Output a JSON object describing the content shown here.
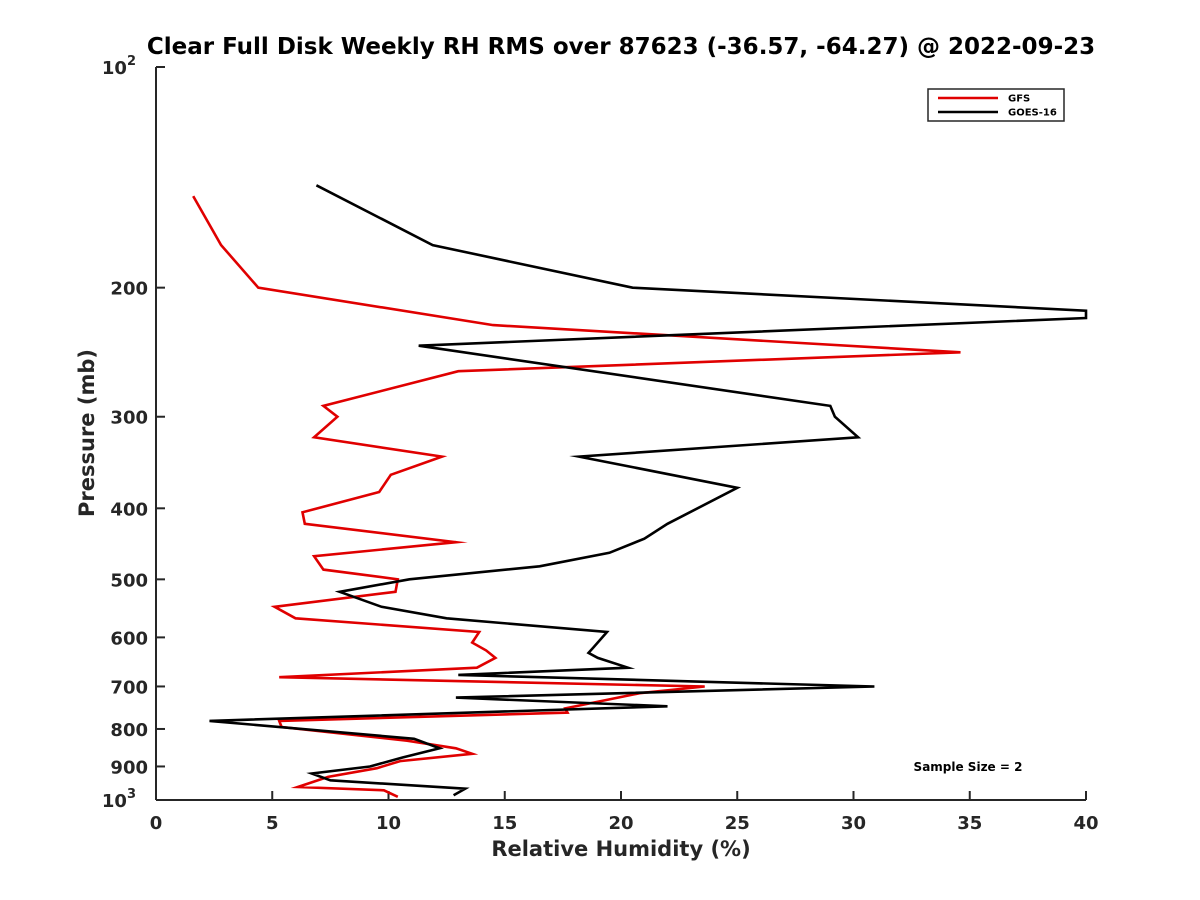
{
  "chart_data": {
    "type": "line",
    "title": "Clear Full Disk Weekly RH RMS over 87623 (-36.57, -64.27) @ 2022-09-23",
    "xlabel": "Relative Humidity (%)",
    "ylabel": "Pressure (mb)",
    "xlim": [
      0,
      40
    ],
    "ylim": [
      100,
      1000
    ],
    "y_scale": "log",
    "y_reversed": true,
    "x_ticks": [
      "0",
      "5",
      "10",
      "15",
      "20",
      "25",
      "30",
      "35",
      "40"
    ],
    "y_ticks": [
      {
        "value": 100,
        "label": "10",
        "exp": "2"
      },
      {
        "value": 200,
        "label": "200"
      },
      {
        "value": 300,
        "label": "300"
      },
      {
        "value": 400,
        "label": "400"
      },
      {
        "value": 500,
        "label": "500"
      },
      {
        "value": 600,
        "label": "600"
      },
      {
        "value": 700,
        "label": "700"
      },
      {
        "value": 800,
        "label": "800"
      },
      {
        "value": 900,
        "label": "900"
      },
      {
        "value": 1000,
        "label": "10",
        "exp": "3"
      }
    ],
    "grid": false,
    "legend_position": "top-right",
    "annotation": "Sample Size = 2",
    "series": [
      {
        "name": "GFS",
        "color": "#e00000",
        "points": [
          [
            1.6,
            150
          ],
          [
            2.8,
            175
          ],
          [
            4.4,
            200
          ],
          [
            14.5,
            225
          ],
          [
            34.6,
            245
          ],
          [
            13.0,
            260
          ],
          [
            7.2,
            290
          ],
          [
            7.8,
            300
          ],
          [
            6.8,
            320
          ],
          [
            12.3,
            340
          ],
          [
            10.1,
            360
          ],
          [
            9.6,
            380
          ],
          [
            6.3,
            405
          ],
          [
            6.4,
            420
          ],
          [
            12.9,
            445
          ],
          [
            6.8,
            465
          ],
          [
            7.2,
            485
          ],
          [
            10.4,
            500
          ],
          [
            10.3,
            520
          ],
          [
            5.1,
            545
          ],
          [
            6.0,
            565
          ],
          [
            13.9,
            590
          ],
          [
            13.6,
            610
          ],
          [
            14.2,
            625
          ],
          [
            14.6,
            640
          ],
          [
            13.8,
            660
          ],
          [
            5.3,
            680
          ],
          [
            23.6,
            700
          ],
          [
            20.8,
            715
          ],
          [
            17.6,
            750
          ],
          [
            17.7,
            760
          ],
          [
            5.3,
            780
          ],
          [
            5.4,
            795
          ],
          [
            10.8,
            830
          ],
          [
            12.9,
            850
          ],
          [
            13.6,
            865
          ],
          [
            10.5,
            885
          ],
          [
            9.5,
            905
          ],
          [
            7.4,
            930
          ],
          [
            6.1,
            960
          ],
          [
            9.8,
            970
          ],
          [
            10.4,
            990
          ]
        ]
      },
      {
        "name": "GOES-16",
        "color": "#000000",
        "points": [
          [
            6.9,
            145
          ],
          [
            11.9,
            175
          ],
          [
            20.5,
            200
          ],
          [
            40.0,
            215
          ],
          [
            40.0,
            220
          ],
          [
            11.3,
            240
          ],
          [
            29.0,
            290
          ],
          [
            29.2,
            300
          ],
          [
            30.2,
            320
          ],
          [
            18.2,
            340
          ],
          [
            25.0,
            375
          ],
          [
            22.0,
            420
          ],
          [
            21.0,
            440
          ],
          [
            19.5,
            460
          ],
          [
            16.5,
            480
          ],
          [
            10.9,
            500
          ],
          [
            7.9,
            520
          ],
          [
            9.7,
            545
          ],
          [
            12.5,
            565
          ],
          [
            19.4,
            590
          ],
          [
            18.8,
            620
          ],
          [
            18.6,
            630
          ],
          [
            19.0,
            640
          ],
          [
            20.3,
            660
          ],
          [
            13.0,
            675
          ],
          [
            30.9,
            700
          ],
          [
            12.9,
            725
          ],
          [
            22.0,
            745
          ],
          [
            2.3,
            780
          ],
          [
            11.1,
            825
          ],
          [
            12.2,
            850
          ],
          [
            10.6,
            875
          ],
          [
            9.2,
            900
          ],
          [
            6.7,
            920
          ],
          [
            7.5,
            940
          ],
          [
            13.3,
            965
          ],
          [
            12.8,
            985
          ]
        ]
      }
    ]
  }
}
